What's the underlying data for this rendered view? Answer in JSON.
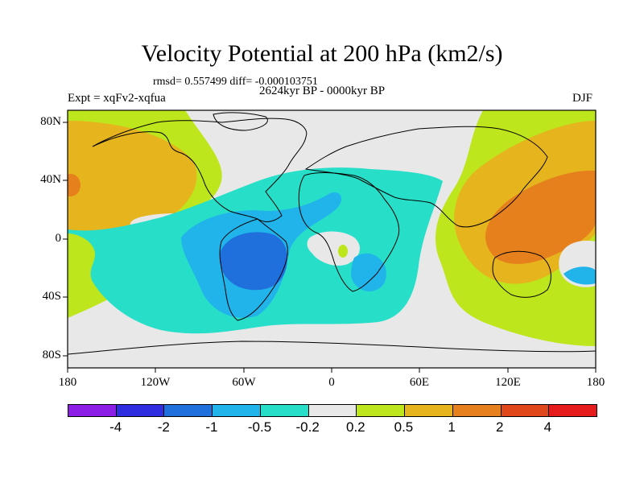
{
  "title": "Velocity Potential at 200 hPa (km2/s)",
  "stats": "rmsd= 0.557499 diff= -0.000103751",
  "period": "2624kyr BP - 0000kyr BP",
  "experiment": "Expt = xqFv2-xqfua",
  "season": "DJF",
  "lat_labels": [
    "80N",
    "40N",
    "0",
    "40S",
    "80S"
  ],
  "lon_labels": [
    "180",
    "120W",
    "60W",
    "0",
    "60E",
    "120E",
    "180"
  ],
  "colorbar": {
    "colors": [
      "#8c1ee6",
      "#2e2ee0",
      "#1f6fdc",
      "#20b4ea",
      "#27dfc8",
      "#e8e8e8",
      "#bde61c",
      "#e6b41c",
      "#e6801c",
      "#e0481c",
      "#e61c1c"
    ],
    "labels": [
      "-4",
      "-2",
      "-1",
      "-0.5",
      "-0.2",
      "0.2",
      "0.5",
      "1",
      "2",
      "4"
    ]
  }
}
